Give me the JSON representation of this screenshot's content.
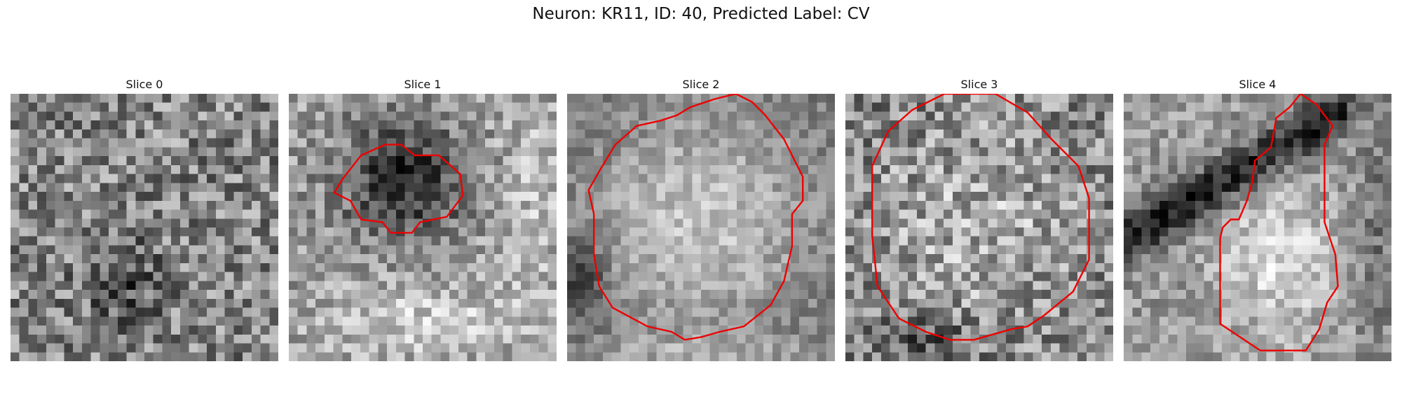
{
  "figure": {
    "title": "Neuron: KR11, ID: 40, Predicted Label: CV"
  },
  "contour_color": "#ee0000",
  "panels": [
    {
      "title": "Slice 0",
      "pattern": "noise",
      "contour": []
    },
    {
      "title": "Slice 1",
      "pattern": "dark-blob",
      "contour": [
        [
          0.27,
          0.23
        ],
        [
          0.36,
          0.19
        ],
        [
          0.42,
          0.19
        ],
        [
          0.47,
          0.23
        ],
        [
          0.56,
          0.23
        ],
        [
          0.64,
          0.3
        ],
        [
          0.65,
          0.38
        ],
        [
          0.59,
          0.46
        ],
        [
          0.49,
          0.48
        ],
        [
          0.46,
          0.52
        ],
        [
          0.38,
          0.52
        ],
        [
          0.35,
          0.48
        ],
        [
          0.27,
          0.47
        ],
        [
          0.23,
          0.4
        ],
        [
          0.17,
          0.37
        ],
        [
          0.2,
          0.32
        ]
      ]
    },
    {
      "title": "Slice 2",
      "pattern": "bright-disk",
      "contour": [
        [
          0.35,
          0.1
        ],
        [
          0.41,
          0.08
        ],
        [
          0.46,
          0.05
        ],
        [
          0.55,
          0.02
        ],
        [
          0.63,
          0.0
        ],
        [
          0.69,
          0.03
        ],
        [
          0.74,
          0.08
        ],
        [
          0.81,
          0.17
        ],
        [
          0.85,
          0.25
        ],
        [
          0.88,
          0.31
        ],
        [
          0.88,
          0.4
        ],
        [
          0.84,
          0.45
        ],
        [
          0.84,
          0.57
        ],
        [
          0.81,
          0.7
        ],
        [
          0.76,
          0.79
        ],
        [
          0.66,
          0.87
        ],
        [
          0.57,
          0.89
        ],
        [
          0.5,
          0.91
        ],
        [
          0.44,
          0.92
        ],
        [
          0.39,
          0.89
        ],
        [
          0.3,
          0.87
        ],
        [
          0.17,
          0.8
        ],
        [
          0.12,
          0.72
        ],
        [
          0.1,
          0.6
        ],
        [
          0.1,
          0.45
        ],
        [
          0.08,
          0.36
        ],
        [
          0.12,
          0.29
        ],
        [
          0.18,
          0.19
        ],
        [
          0.26,
          0.12
        ]
      ]
    },
    {
      "title": "Slice 3",
      "pattern": "bright-disk-coarse",
      "contour": [
        [
          0.25,
          0.06
        ],
        [
          0.37,
          0.0
        ],
        [
          0.56,
          0.0
        ],
        [
          0.68,
          0.07
        ],
        [
          0.77,
          0.17
        ],
        [
          0.87,
          0.27
        ],
        [
          0.91,
          0.39
        ],
        [
          0.91,
          0.62
        ],
        [
          0.85,
          0.74
        ],
        [
          0.74,
          0.83
        ],
        [
          0.68,
          0.87
        ],
        [
          0.62,
          0.88
        ],
        [
          0.48,
          0.92
        ],
        [
          0.39,
          0.92
        ],
        [
          0.3,
          0.89
        ],
        [
          0.2,
          0.84
        ],
        [
          0.12,
          0.72
        ],
        [
          0.1,
          0.53
        ],
        [
          0.1,
          0.4
        ],
        [
          0.1,
          0.27
        ],
        [
          0.16,
          0.14
        ]
      ]
    },
    {
      "title": "Slice 4",
      "pattern": "dark-band",
      "contour": [
        [
          0.49,
          0.25
        ],
        [
          0.55,
          0.2
        ],
        [
          0.57,
          0.09
        ],
        [
          0.62,
          0.05
        ],
        [
          0.66,
          0.0
        ],
        [
          0.72,
          0.04
        ],
        [
          0.78,
          0.12
        ],
        [
          0.75,
          0.19
        ],
        [
          0.75,
          0.48
        ],
        [
          0.79,
          0.6
        ],
        [
          0.8,
          0.72
        ],
        [
          0.76,
          0.78
        ],
        [
          0.73,
          0.88
        ],
        [
          0.68,
          0.96
        ],
        [
          0.51,
          0.96
        ],
        [
          0.42,
          0.9
        ],
        [
          0.36,
          0.86
        ],
        [
          0.36,
          0.54
        ],
        [
          0.37,
          0.5
        ],
        [
          0.4,
          0.47
        ],
        [
          0.43,
          0.47
        ],
        [
          0.46,
          0.4
        ],
        [
          0.48,
          0.33
        ]
      ]
    }
  ]
}
